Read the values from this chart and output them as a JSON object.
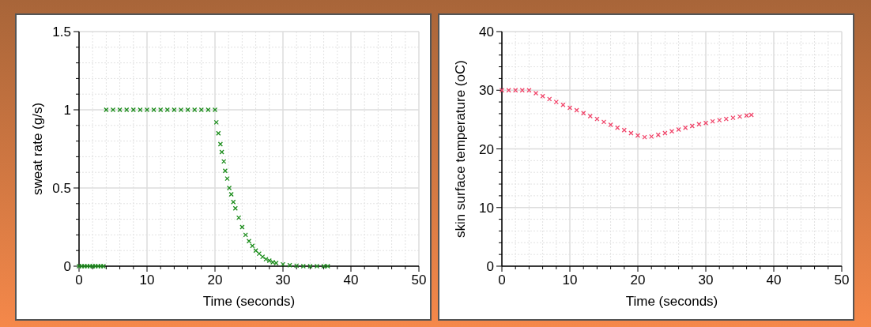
{
  "chart_data": [
    {
      "type": "scatter",
      "xlabel": "Time (seconds)",
      "ylabel": "sweat rate (g/s)",
      "xlim": [
        0,
        50
      ],
      "ylim": [
        0,
        1.5
      ],
      "xticks": [
        0,
        10,
        20,
        30,
        40,
        50
      ],
      "yticks": [
        0,
        0.5,
        1,
        1.5
      ],
      "grid": true,
      "marker": "cross",
      "series": [
        {
          "color": "#1a8c1a",
          "x": [
            0,
            0.4,
            0.8,
            1.2,
            1.6,
            2,
            2.4,
            2.8,
            3.2,
            3.6,
            4,
            5,
            6,
            7,
            8,
            9,
            10,
            11,
            12,
            13,
            14,
            15,
            16,
            17,
            18,
            19,
            20,
            20.2,
            20.5,
            20.8,
            21,
            21.3,
            21.5,
            21.8,
            22.1,
            22.4,
            22.7,
            23,
            23.5,
            24,
            24.5,
            25,
            25.5,
            26,
            26.5,
            27,
            27.5,
            28,
            28.5,
            29,
            30,
            31,
            32,
            33,
            34,
            35,
            36,
            36.6
          ],
          "values": [
            0,
            0,
            0,
            0,
            0,
            0,
            0,
            0,
            0,
            0,
            1,
            1,
            1,
            1,
            1,
            1,
            1,
            1,
            1,
            1,
            1,
            1,
            1,
            1,
            1,
            1,
            1,
            0.92,
            0.85,
            0.78,
            0.73,
            0.67,
            0.61,
            0.56,
            0.5,
            0.46,
            0.41,
            0.37,
            0.31,
            0.25,
            0.2,
            0.16,
            0.13,
            0.1,
            0.08,
            0.06,
            0.045,
            0.035,
            0.025,
            0.02,
            0.012,
            0.006,
            0.003,
            0,
            0,
            0,
            0,
            0
          ]
        }
      ]
    },
    {
      "type": "scatter",
      "xlabel": "Time (seconds)",
      "ylabel": "skin surface temperature (oC)",
      "xlim": [
        0,
        50
      ],
      "ylim": [
        0,
        40
      ],
      "xticks": [
        0,
        10,
        20,
        30,
        40,
        50
      ],
      "yticks": [
        0,
        10,
        20,
        30,
        40
      ],
      "grid": true,
      "marker": "cross",
      "series": [
        {
          "color": "#f0456a",
          "x": [
            0,
            1,
            2,
            3,
            4,
            5,
            6,
            7,
            8,
            9,
            10,
            11,
            12,
            13,
            14,
            15,
            16,
            17,
            18,
            19,
            20,
            21,
            22,
            23,
            24,
            25,
            26,
            27,
            28,
            29,
            30,
            31,
            32,
            33,
            34,
            35,
            36,
            36.7
          ],
          "values": [
            30,
            30,
            30,
            30,
            30,
            29.5,
            29,
            28.5,
            28,
            27.5,
            27,
            26.6,
            26.1,
            25.6,
            25.1,
            24.6,
            24.1,
            23.6,
            23.2,
            22.7,
            22.3,
            22,
            22.1,
            22.4,
            22.7,
            23,
            23.3,
            23.6,
            23.9,
            24.2,
            24.4,
            24.7,
            24.9,
            25.1,
            25.3,
            25.5,
            25.7,
            25.8
          ]
        }
      ]
    }
  ]
}
